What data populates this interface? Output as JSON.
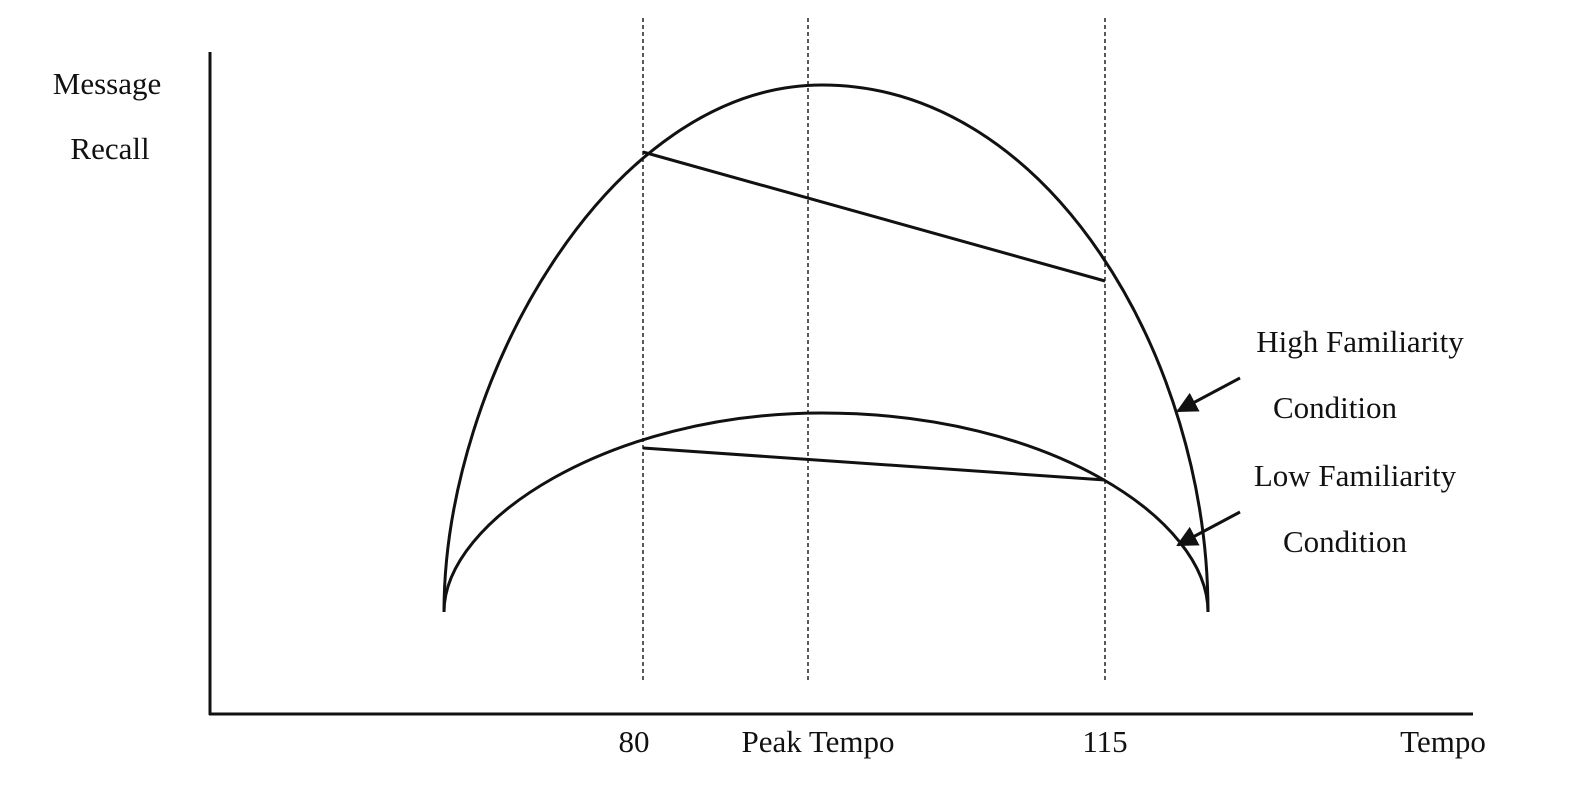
{
  "y_axis_label": [
    "Message",
    "Recall"
  ],
  "x_axis_label": "Tempo",
  "x_labels": [
    "80",
    "Peak Tempo",
    "115"
  ],
  "curves": [
    {
      "label": [
        "High Familiarity",
        "Condition"
      ]
    },
    {
      "label": [
        "Low Familiarity",
        "Condition"
      ]
    }
  ]
}
